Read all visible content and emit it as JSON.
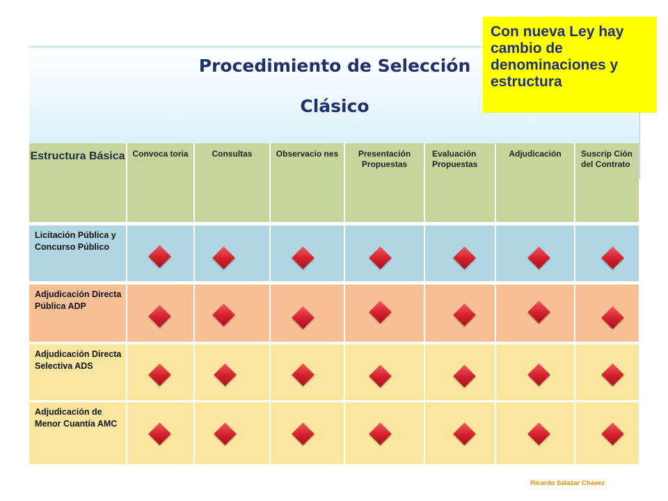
{
  "title": {
    "line1": "Procedimiento de Selección",
    "line2": "Clásico"
  },
  "note": "Con nueva Ley hay cambio de denominaciones y estructura",
  "table": {
    "corner": "Estructura Básica",
    "columns": [
      "Convoca toria",
      "Consultas",
      "Observacio nes",
      "Presentación Propuestas",
      "Evaluación Propuestas",
      "Adjudicación",
      "Suscrip Ción del Contrato"
    ],
    "rows": [
      {
        "label": "Licitación Pública y Concurso Público",
        "color": "#afd6e2",
        "marks": [
          true,
          true,
          true,
          true,
          true,
          true,
          true
        ]
      },
      {
        "label": "Adjudicación Directa Pública ADP",
        "color": "#f6bf94",
        "marks": [
          true,
          true,
          true,
          true,
          true,
          true,
          true
        ]
      },
      {
        "label": "Adjudicación Directa Selectiva ADS",
        "color": "#fbe69f",
        "marks": [
          true,
          true,
          true,
          true,
          true,
          true,
          true
        ]
      },
      {
        "label": "Adjudicación de Menor Cuantía AMC",
        "color": "#fbe69f",
        "marks": [
          true,
          true,
          true,
          true,
          true,
          true,
          true
        ]
      }
    ],
    "marker_icon": "red-diamond-icon",
    "header_color": "#c5d59c"
  },
  "author": "Ricardo Salazar Chávez"
}
